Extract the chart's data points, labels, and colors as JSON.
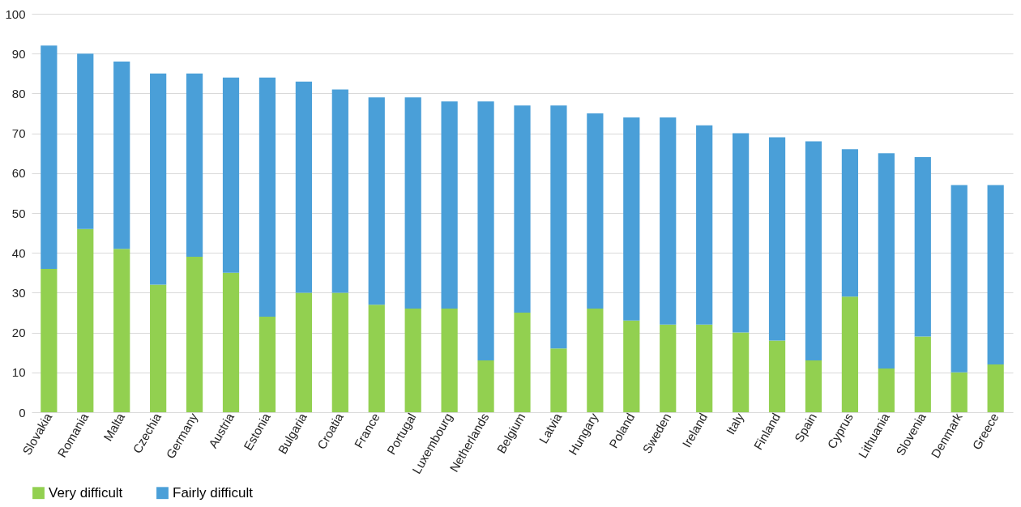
{
  "chart_data": {
    "type": "bar",
    "stacked": true,
    "categories": [
      "Slovakia",
      "Romania",
      "Malta",
      "Czechia",
      "Germany",
      "Austria",
      "Estonia",
      "Bulgaria",
      "Croatia",
      "France",
      "Portugal",
      "Luxembourg",
      "Netherlands",
      "Belgium",
      "Latvia",
      "Hungary",
      "Poland",
      "Sweden",
      "Ireland",
      "Italy",
      "Finland",
      "Spain",
      "Cyprus",
      "Lithuania",
      "Slovenia",
      "Denmark",
      "Greece"
    ],
    "series": [
      {
        "name": "Very difficult",
        "color": "#92d050",
        "values": [
          36,
          46,
          41,
          32,
          39,
          35,
          24,
          30,
          30,
          27,
          26,
          26,
          13,
          25,
          16,
          26,
          23,
          22,
          22,
          20,
          18,
          13,
          29,
          11,
          19,
          10,
          12
        ]
      },
      {
        "name": "Fairly difficult",
        "color": "#4a9fd8",
        "values": [
          56,
          44,
          47,
          53,
          46,
          49,
          60,
          53,
          51,
          52,
          53,
          52,
          65,
          52,
          61,
          49,
          51,
          52,
          50,
          50,
          51,
          55,
          37,
          54,
          45,
          47,
          45
        ]
      }
    ],
    "ylim": [
      0,
      100
    ],
    "yticks": [
      0,
      10,
      20,
      30,
      40,
      50,
      60,
      70,
      80,
      90,
      100
    ],
    "grid": "y",
    "legend": "bottom"
  }
}
